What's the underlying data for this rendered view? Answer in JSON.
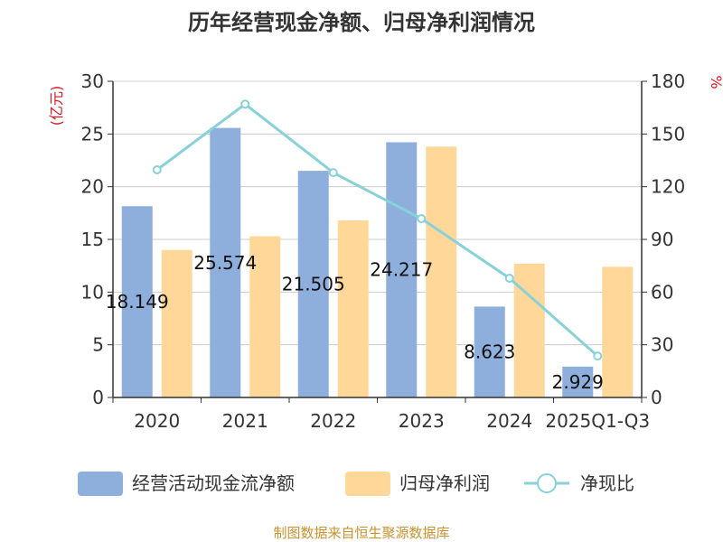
{
  "chart_data": {
    "type": "bar",
    "title": "历年经营现金净额、归母净利润情况",
    "categories": [
      "2020",
      "2021",
      "2022",
      "2023",
      "2024",
      "2025Q1-Q3"
    ],
    "series": [
      {
        "name": "经营活动现金流净额",
        "kind": "bar",
        "axis": "left",
        "color": "#8eaedb",
        "values": [
          18.149,
          25.574,
          21.505,
          24.217,
          8.623,
          2.929
        ],
        "labels": [
          "18.149",
          "25.574",
          "21.505",
          "24.217",
          "8.623",
          "2.929"
        ]
      },
      {
        "name": "归母净利润",
        "kind": "bar",
        "axis": "left",
        "color": "#ffd899",
        "values": [
          14.0,
          15.3,
          16.8,
          23.8,
          12.7,
          12.4
        ]
      },
      {
        "name": "净现比",
        "kind": "line",
        "axis": "right",
        "color": "#88d1d9",
        "values": [
          129.6,
          167.0,
          128.0,
          101.8,
          67.9,
          23.6
        ]
      }
    ],
    "left_axis": {
      "unit": "(亿元)",
      "min": 0,
      "max": 30,
      "ticks": [
        "0",
        "5",
        "10",
        "15",
        "20",
        "25",
        "30"
      ]
    },
    "right_axis": {
      "unit": "%",
      "min": 0,
      "max": 180,
      "ticks": [
        "0",
        "30",
        "60",
        "90",
        "120",
        "150",
        "180"
      ]
    },
    "grid": true,
    "legend_position": "bottom"
  },
  "source": "制图数据来自恒生聚源数据库"
}
